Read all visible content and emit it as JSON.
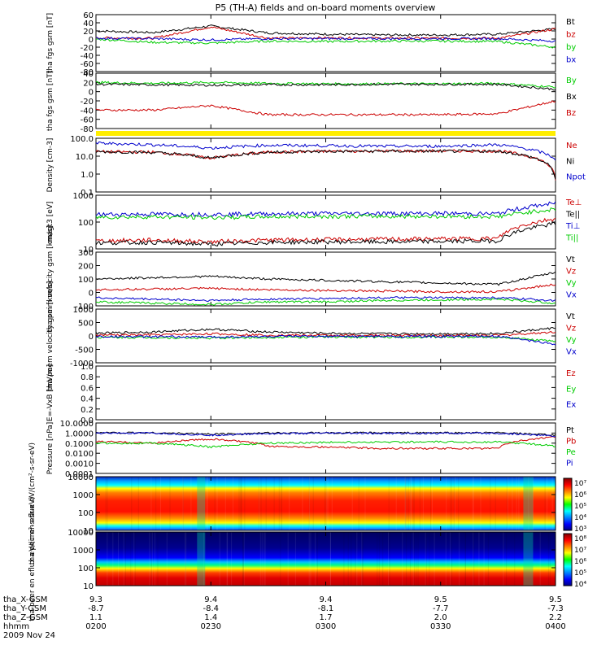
{
  "title": "P5 (TH-A) fields and on-board moments overview",
  "date_label": "2009 Nov 24",
  "colorbar_labels": {
    "top": [
      "10⁷",
      "10⁶",
      "10⁵",
      "10⁴",
      "10³"
    ],
    "bottom": [
      "10⁸",
      "10⁷",
      "10⁶",
      "10⁵",
      "10⁴"
    ]
  },
  "ephemeris": {
    "row_labels": [
      "tha_X-GSM",
      "tha_Y-GSM",
      "tha_Z-GSM",
      "hhmm"
    ],
    "columns": [
      [
        "9.3",
        "-8.7",
        "1.1",
        "0200"
      ],
      [
        "9.4",
        "-8.4",
        "1.4",
        "0230"
      ],
      [
        "9.4",
        "-8.1",
        "1.7",
        "0300"
      ],
      [
        "9.5",
        "-7.7",
        "2.0",
        "0330"
      ],
      [
        "9.5",
        "-7.3",
        "2.2",
        "0400"
      ]
    ]
  },
  "chart_data": [
    {
      "type": "line",
      "ylabel": "tha fgs gsm [nT]",
      "ylim": [
        -80,
        60
      ],
      "y_ticks": [
        "60",
        "40",
        "20",
        "0",
        "-20",
        "-40",
        "-60",
        "-80"
      ],
      "legend": [
        "Bt",
        "bz",
        "by",
        "bx"
      ],
      "legend_colors": [
        "#000000",
        "#cc0000",
        "#00cc00",
        "#0000cc"
      ],
      "x": [
        "0200",
        "0215",
        "0230",
        "0245",
        "0300",
        "0315",
        "0330",
        "0345",
        "0400"
      ],
      "series": [
        {
          "name": "Bt",
          "color": "#000000",
          "values": [
            20,
            16,
            32,
            15,
            12,
            10,
            10,
            12,
            25
          ]
        },
        {
          "name": "bz",
          "color": "#cc0000",
          "values": [
            3,
            2,
            30,
            2,
            3,
            2,
            2,
            2,
            25
          ]
        },
        {
          "name": "by",
          "color": "#00cc00",
          "values": [
            0,
            -8,
            -10,
            -5,
            -6,
            -5,
            -5,
            -6,
            -20
          ]
        },
        {
          "name": "bx",
          "color": "#0000cc",
          "values": [
            2,
            1,
            -2,
            1,
            1,
            1,
            1,
            1,
            -5
          ]
        }
      ]
    },
    {
      "type": "line",
      "ylabel": "tha fgs gsm [nT]",
      "ylim": [
        -80,
        40
      ],
      "y_ticks": [
        "40",
        "20",
        "0",
        "-20",
        "-40",
        "-60",
        "-80"
      ],
      "legend": [
        "By",
        "Bx",
        "Bz"
      ],
      "legend_colors": [
        "#00cc00",
        "#000000",
        "#cc0000"
      ],
      "x": [
        "0200",
        "0215",
        "0230",
        "0245",
        "0300",
        "0315",
        "0330",
        "0345",
        "0400"
      ],
      "series": [
        {
          "name": "By",
          "color": "#00cc00",
          "values": [
            20,
            18,
            20,
            18,
            17,
            17,
            17,
            18,
            10
          ]
        },
        {
          "name": "Bx",
          "color": "#000000",
          "values": [
            16,
            15,
            14,
            15,
            15,
            16,
            16,
            16,
            5
          ]
        },
        {
          "name": "Bz",
          "color": "#cc0000",
          "values": [
            -40,
            -40,
            -30,
            -50,
            -50,
            -50,
            -50,
            -48,
            -20
          ]
        }
      ]
    },
    {
      "type": "line",
      "ylabel": "Density [cm-3]",
      "ylim": [
        0.1,
        200
      ],
      "y_scale": "log",
      "y_ticks": [
        "100.0",
        "10.0",
        "1.0",
        "0.1"
      ],
      "legend": [
        "Ne",
        "Ni",
        "Npot"
      ],
      "legend_colors": [
        "#cc0000",
        "#000000",
        "#0000cc"
      ],
      "x": [
        "0200",
        "0215",
        "0230",
        "0245",
        "0300",
        "0315",
        "0330",
        "0345",
        "0400"
      ],
      "series": [
        {
          "name": "Ne",
          "color": "#cc0000",
          "values": [
            30,
            28,
            12,
            28,
            32,
            33,
            33,
            33,
            0.5
          ]
        },
        {
          "name": "Ni",
          "color": "#000000",
          "values": [
            30,
            27,
            12,
            28,
            31,
            32,
            32,
            32,
            0.6
          ]
        },
        {
          "name": "Npot",
          "color": "#0000cc",
          "values": [
            100,
            80,
            50,
            75,
            70,
            65,
            65,
            80,
            10
          ]
        }
      ]
    },
    {
      "type": "line",
      "ylabel": "magt3 [eV]",
      "ylim": [
        10,
        2000
      ],
      "y_scale": "log",
      "y_ticks": [
        "1000",
        "100",
        "10"
      ],
      "legend": [
        "Te⊥",
        "Te||",
        "Ti⊥",
        "Ti||"
      ],
      "legend_colors": [
        "#cc0000",
        "#000000",
        "#0000cc",
        "#00cc00"
      ],
      "x": [
        "0200",
        "0215",
        "0230",
        "0245",
        "0300",
        "0315",
        "0330",
        "0345",
        "0400"
      ],
      "series": [
        {
          "name": "Te⊥",
          "color": "#cc0000",
          "values": [
            22,
            24,
            20,
            24,
            25,
            26,
            27,
            28,
            200
          ]
        },
        {
          "name": "Te||",
          "color": "#000000",
          "values": [
            18,
            19,
            16,
            19,
            20,
            20,
            21,
            22,
            120
          ]
        },
        {
          "name": "Ti⊥",
          "color": "#0000cc",
          "values": [
            300,
            310,
            300,
            320,
            330,
            330,
            330,
            320,
            900
          ]
        },
        {
          "name": "Ti||",
          "color": "#00cc00",
          "values": [
            230,
            240,
            220,
            240,
            250,
            250,
            250,
            240,
            500
          ]
        }
      ]
    },
    {
      "type": "line",
      "ylabel": "tha peim velocity gsm [km/s]",
      "ylim": [
        -100,
        300
      ],
      "y_ticks": [
        "300",
        "200",
        "100",
        "0",
        "-100"
      ],
      "legend": [
        "Vt",
        "Vz",
        "Vy",
        "Vx"
      ],
      "legend_colors": [
        "#000000",
        "#cc0000",
        "#00cc00",
        "#0000cc"
      ],
      "x": [
        "0200",
        "0215",
        "0230",
        "0245",
        "0300",
        "0315",
        "0330",
        "0345",
        "0400"
      ],
      "series": [
        {
          "name": "Vt",
          "color": "#000000",
          "values": [
            100,
            110,
            120,
            100,
            90,
            80,
            70,
            60,
            150
          ]
        },
        {
          "name": "Vz",
          "color": "#cc0000",
          "values": [
            20,
            25,
            30,
            20,
            15,
            10,
            5,
            5,
            60
          ]
        },
        {
          "name": "Vy",
          "color": "#00cc00",
          "values": [
            -70,
            -80,
            -90,
            -70,
            -70,
            -60,
            -55,
            -50,
            -80
          ]
        },
        {
          "name": "Vx",
          "color": "#0000cc",
          "values": [
            -40,
            -50,
            -60,
            -50,
            -45,
            -40,
            -40,
            -40,
            -60
          ]
        }
      ]
    },
    {
      "type": "line",
      "ylabel": "tha peem velocity gsm [km/s]",
      "ylim": [
        -1000,
        1000
      ],
      "y_ticks": [
        "1000",
        "500",
        "0",
        "-500",
        "-1000"
      ],
      "legend": [
        "Vt",
        "Vz",
        "Vy",
        "Vx"
      ],
      "legend_colors": [
        "#000000",
        "#cc0000",
        "#00cc00",
        "#0000cc"
      ],
      "x": [
        "0200",
        "0215",
        "0230",
        "0245",
        "0300",
        "0315",
        "0330",
        "0345",
        "0400"
      ],
      "series": [
        {
          "name": "Vt",
          "color": "#000000",
          "values": [
            100,
            150,
            250,
            150,
            100,
            80,
            80,
            90,
            300
          ]
        },
        {
          "name": "Vz",
          "color": "#cc0000",
          "values": [
            30,
            40,
            80,
            30,
            20,
            20,
            20,
            20,
            150
          ]
        },
        {
          "name": "Vy",
          "color": "#00cc00",
          "values": [
            -50,
            -60,
            -80,
            -50,
            -40,
            -40,
            -40,
            -40,
            -200
          ]
        },
        {
          "name": "Vx",
          "color": "#0000cc",
          "values": [
            -20,
            -30,
            -40,
            -20,
            -20,
            -20,
            -20,
            -20,
            -300
          ]
        }
      ]
    },
    {
      "type": "line",
      "ylabel": "E=-VxB [mV/m]",
      "ylim": [
        0,
        1
      ],
      "y_ticks": [
        "1.0",
        "0.8",
        "0.6",
        "0.4",
        "0.2",
        "0.0"
      ],
      "legend": [
        "Ez",
        "Ey",
        "Ex"
      ],
      "legend_colors": [
        "#cc0000",
        "#00cc00",
        "#0000cc"
      ],
      "series": []
    },
    {
      "type": "line",
      "ylabel": "Pressure [nPa]",
      "ylim": [
        0.0001,
        10
      ],
      "y_scale": "log",
      "y_ticks": [
        "10.0000",
        "1.0000",
        "0.1000",
        "0.0100",
        "0.0010",
        "0.0001"
      ],
      "legend": [
        "Pt",
        "Pb",
        "Pe",
        "Pi"
      ],
      "legend_colors": [
        "#000000",
        "#cc0000",
        "#00cc00",
        "#0000cc"
      ],
      "x": [
        "0200",
        "0215",
        "0230",
        "0245",
        "0300",
        "0315",
        "0330",
        "0345",
        "0400"
      ],
      "series": [
        {
          "name": "Pt",
          "color": "#000000",
          "values": [
            1.1,
            1.05,
            0.8,
            1.0,
            1.05,
            1.05,
            1.05,
            1.05,
            0.6
          ]
        },
        {
          "name": "Pb",
          "color": "#cc0000",
          "values": [
            0.15,
            0.1,
            0.25,
            0.05,
            0.04,
            0.03,
            0.03,
            0.03,
            0.4
          ]
        },
        {
          "name": "Pe",
          "color": "#00cc00",
          "values": [
            0.1,
            0.1,
            0.04,
            0.1,
            0.12,
            0.13,
            0.13,
            0.13,
            0.05
          ]
        },
        {
          "name": "Pi",
          "color": "#0000cc",
          "values": [
            1.0,
            0.95,
            0.6,
            0.9,
            0.95,
            0.95,
            0.95,
            0.95,
            0.5
          ]
        }
      ]
    },
    {
      "type": "heatmap",
      "ylabel": "tha peir en eflux eV/(cm²-s-sr-eV)",
      "y_scale": "log",
      "y_ticks": [
        "10000",
        "1000",
        "100",
        "10"
      ],
      "colorbar_range": [
        "10³",
        "10⁷"
      ]
    },
    {
      "type": "heatmap",
      "ylabel": "tha peer en eflux eV/(cm²-s-sr-eV)",
      "y_scale": "log",
      "y_ticks": [
        "10000",
        "1000",
        "100",
        "10"
      ],
      "colorbar_range": [
        "10⁴",
        "10⁸"
      ]
    }
  ]
}
